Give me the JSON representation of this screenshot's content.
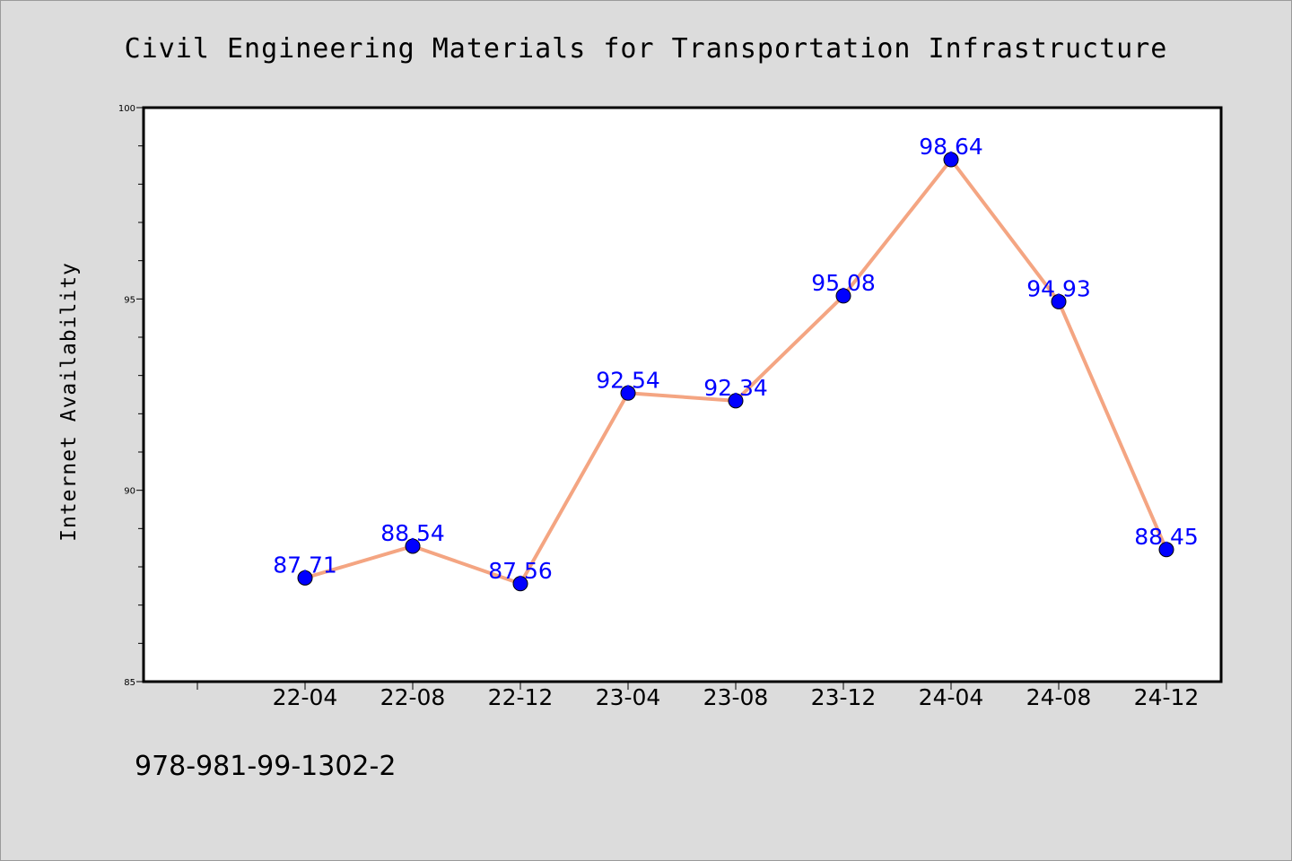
{
  "colors": {
    "background": "#dcdcdc",
    "plot_background": "#ffffff",
    "line": "#f4a582",
    "marker": "#0000ff",
    "data_label": "#0000ff",
    "axis": "#000000"
  },
  "footer": {
    "isbn": "978-981-99-1302-2"
  },
  "chart_data": {
    "type": "line",
    "title": "Civil Engineering Materials for Transportation Infrastructure",
    "xlabel": "",
    "ylabel": "Internet Availability",
    "categories": [
      "22-04",
      "22-08",
      "22-12",
      "23-04",
      "23-08",
      "23-12",
      "24-04",
      "24-08",
      "24-12"
    ],
    "series": [
      {
        "values": [
          87.71,
          88.54,
          87.56,
          92.54,
          92.34,
          95.08,
          98.64,
          94.93,
          88.45
        ]
      }
    ],
    "data_labels": [
      "87.71",
      "88.54",
      "87.56",
      "92.54",
      "92.34",
      "95.08",
      "98.64",
      "94.93",
      "88.45"
    ],
    "ylim": [
      85,
      100
    ],
    "yticks": [
      85,
      90,
      95,
      100
    ],
    "ytick_labels": [
      "85",
      "90",
      "95",
      "100"
    ],
    "grid": false,
    "legend": "none",
    "marker": "circle"
  }
}
